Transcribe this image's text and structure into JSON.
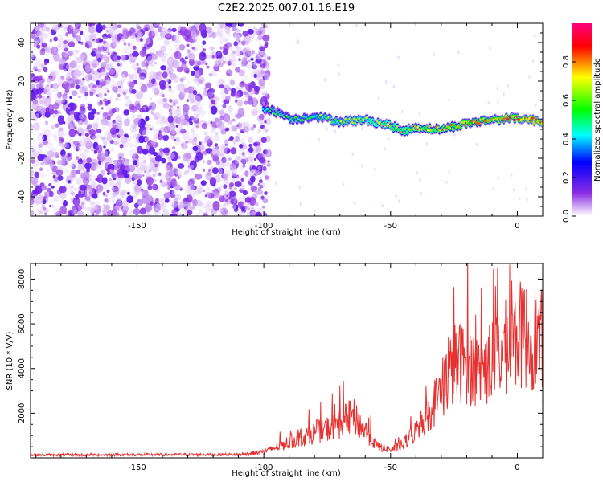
{
  "title": "C2E2.2025.007.01.16.E19",
  "chart_data": [
    {
      "type": "heatmap",
      "xlabel": "Height of straight line (km)",
      "ylabel": "Frequency (Hz)",
      "xlim": [
        -192,
        10
      ],
      "ylim": [
        -50,
        50
      ],
      "xticks": [
        -150,
        -100,
        -50,
        0
      ],
      "yticks": [
        -40,
        -20,
        0,
        20,
        40
      ],
      "colorbar": {
        "label": "Normalized spectral amplitude",
        "range": [
          0,
          1
        ],
        "ticks": [
          "0.0",
          "0.2",
          "0.4",
          "0.6",
          "0.8"
        ],
        "colors": [
          "#ffffff",
          "#8a2be2",
          "#0000ff",
          "#00ffff",
          "#00ff00",
          "#ffff00",
          "#ff0000",
          "#ff0080"
        ]
      },
      "ridge": {
        "x": [
          -100,
          -95,
          -88,
          -80,
          -70,
          -60,
          -50,
          -45,
          -40,
          -30,
          -20,
          -10,
          0,
          5,
          10
        ],
        "y": [
          6,
          4,
          0,
          2,
          -1,
          0,
          -3,
          -6,
          -4,
          -5,
          -2,
          0,
          1,
          0,
          -1
        ]
      },
      "noise_region_x": [
        -192,
        -100
      ]
    },
    {
      "type": "line",
      "xlabel": "Height of straight line (km)",
      "ylabel": "SNR (10 * V/V)",
      "xlim": [
        -192,
        10
      ],
      "ylim": [
        0,
        8700
      ],
      "xticks": [
        -150,
        -100,
        -50,
        0
      ],
      "yticks": [
        2000,
        4000,
        6000,
        8000
      ],
      "color": "#e8302f",
      "envelope": {
        "x": [
          -192,
          -110,
          -100,
          -90,
          -80,
          -70,
          -65,
          -60,
          -55,
          -50,
          -45,
          -40,
          -35,
          -30,
          -25,
          -20,
          -15,
          -10,
          -5,
          -2,
          0,
          5,
          10
        ],
        "y": [
          130,
          150,
          260,
          700,
          1100,
          1500,
          1900,
          1200,
          500,
          350,
          600,
          1200,
          2000,
          3000,
          4200,
          4300,
          3800,
          4400,
          4900,
          5000,
          5500,
          5400,
          5300
        ]
      },
      "peaks": [
        {
          "x": -70,
          "y": 3250
        },
        {
          "x": -25,
          "y": 7650
        },
        {
          "x": -3,
          "y": 8650
        },
        {
          "x": 9,
          "y": 6400
        }
      ]
    }
  ]
}
